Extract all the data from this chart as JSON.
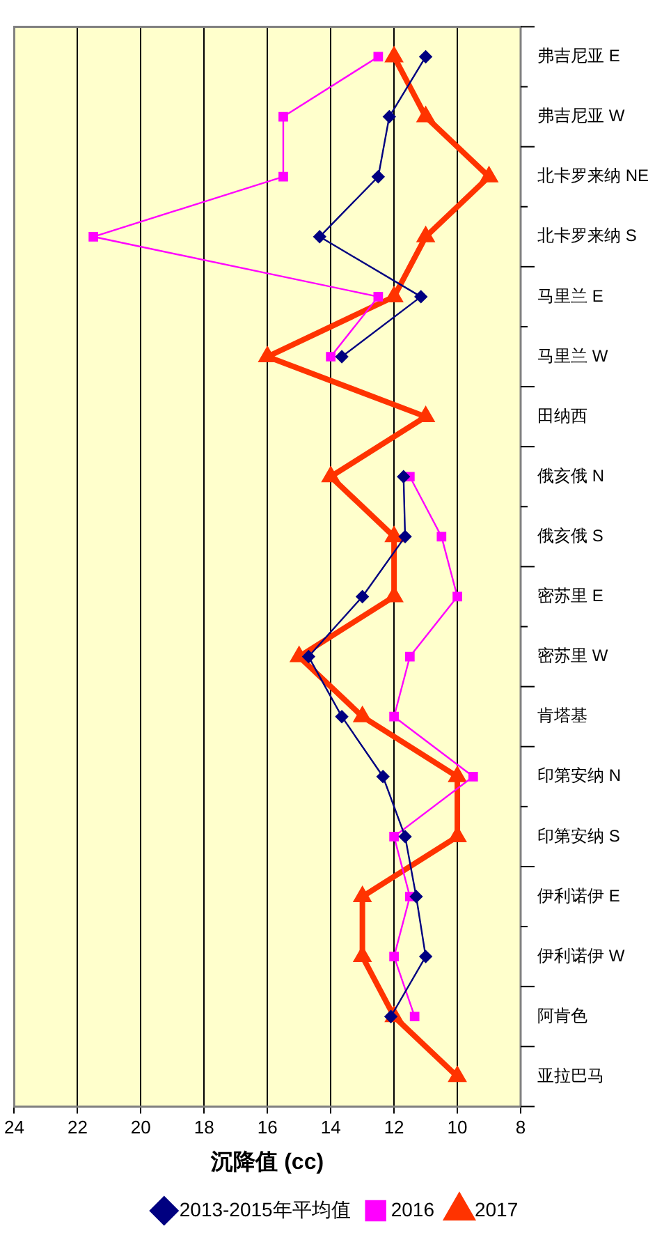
{
  "chart_data": {
    "type": "line",
    "orientation": "horizontal",
    "xlabel": "沉降值 (cc)",
    "categories": [
      "弗吉尼亚 E",
      "弗吉尼亚 W",
      "北卡罗来纳 NE",
      "北卡罗来纳 S",
      "马里兰 E",
      "马里兰 W",
      "田纳西",
      "俄亥俄 N",
      "俄亥俄 S",
      "密苏里 E",
      "密苏里 W",
      "肯塔基",
      "印第安纳 N",
      "印第安纳 S",
      "伊利诺伊 E",
      "伊利诺伊 W",
      "阿肯色",
      "亚拉巴马"
    ],
    "series": [
      {
        "name": "2013-2015年平均值",
        "color": "#000080",
        "marker": "diamond",
        "values": [
          11.0,
          12.15,
          12.5,
          14.35,
          11.15,
          13.65,
          null,
          11.7,
          11.65,
          13.0,
          14.7,
          13.65,
          12.35,
          11.65,
          11.3,
          11.0,
          12.1,
          null
        ]
      },
      {
        "name": "2016",
        "color": "#ff00ff",
        "marker": "square",
        "values": [
          12.5,
          15.5,
          15.5,
          21.5,
          12.5,
          14.0,
          null,
          11.5,
          10.5,
          10.0,
          11.5,
          12.0,
          9.5,
          12.0,
          11.5,
          12.0,
          11.35,
          null
        ]
      },
      {
        "name": "2017",
        "color": "#ff3300",
        "marker": "triangle",
        "values": [
          12.0,
          11.0,
          9.0,
          11.0,
          12.0,
          16.0,
          11.0,
          14.0,
          12.0,
          12.0,
          15.0,
          13.0,
          10.0,
          10.0,
          13.0,
          13.0,
          12.0,
          10.0
        ]
      }
    ],
    "xlim": [
      24,
      8
    ],
    "xticks": [
      24,
      22,
      20,
      18,
      16,
      14,
      12,
      10,
      8
    ],
    "grid": "x",
    "legend": "bottom"
  }
}
